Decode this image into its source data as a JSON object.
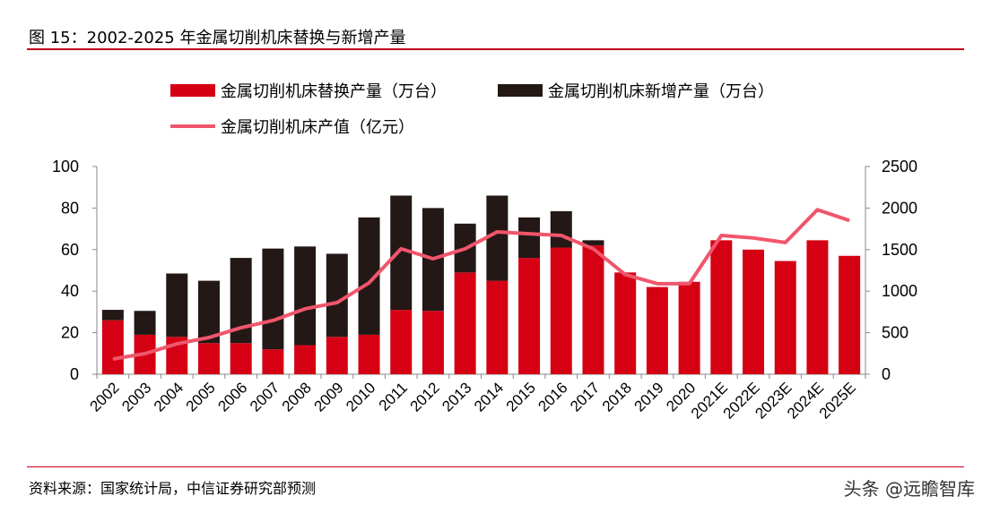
{
  "title": "图 15：2002-2025 年金属切削机床替换与新增产量",
  "source": "资料来源：国家统计局，中信证券研究部预测",
  "watermark": "头条 @远瞻智库",
  "chart_data": {
    "type": "bar",
    "stacked": true,
    "categories": [
      "2002",
      "2003",
      "2004",
      "2005",
      "2006",
      "2007",
      "2008",
      "2009",
      "2010",
      "2011",
      "2012",
      "2013",
      "2014",
      "2015",
      "2016",
      "2017",
      "2018",
      "2019",
      "2020",
      "2021E",
      "2022E",
      "2023E",
      "2024E",
      "2025E"
    ],
    "series": [
      {
        "name": "金属切削机床替换产量（万台）",
        "type": "bar",
        "axis": "left",
        "color": "#d50014",
        "values": [
          26,
          19,
          18,
          15,
          15,
          12,
          14,
          18,
          19,
          31,
          30.5,
          49,
          45,
          56,
          61,
          62,
          49,
          42,
          44.5,
          64.5,
          60,
          54.5,
          64.5,
          57
        ]
      },
      {
        "name": "金属切削机床新增产量（万台）",
        "type": "bar",
        "axis": "left",
        "color": "#231815",
        "values": [
          5,
          11.5,
          30.5,
          30,
          41,
          48.5,
          47.5,
          40,
          56.5,
          55,
          49.5,
          23.5,
          41,
          19.5,
          17.5,
          2.5,
          0,
          0,
          0,
          0,
          0,
          0,
          0,
          0
        ]
      },
      {
        "name": "金属切削机床产值（亿元）",
        "type": "line",
        "axis": "right",
        "color": "#f0566b",
        "values": [
          183,
          248,
          366,
          442,
          560,
          647,
          787,
          862,
          1100,
          1510,
          1390,
          1510,
          1713,
          1690,
          1670,
          1510,
          1200,
          1090,
          1090,
          1670,
          1640,
          1585,
          1980,
          1850
        ]
      }
    ],
    "y_left": {
      "range": [
        0,
        100
      ],
      "ticks": [
        "0",
        "20",
        "40",
        "60",
        "80",
        "100"
      ]
    },
    "y_right": {
      "range": [
        0,
        2500
      ],
      "ticks": [
        "0",
        "500",
        "1000",
        "1500",
        "2000",
        "2500"
      ]
    },
    "grid": false,
    "legend": "top"
  }
}
